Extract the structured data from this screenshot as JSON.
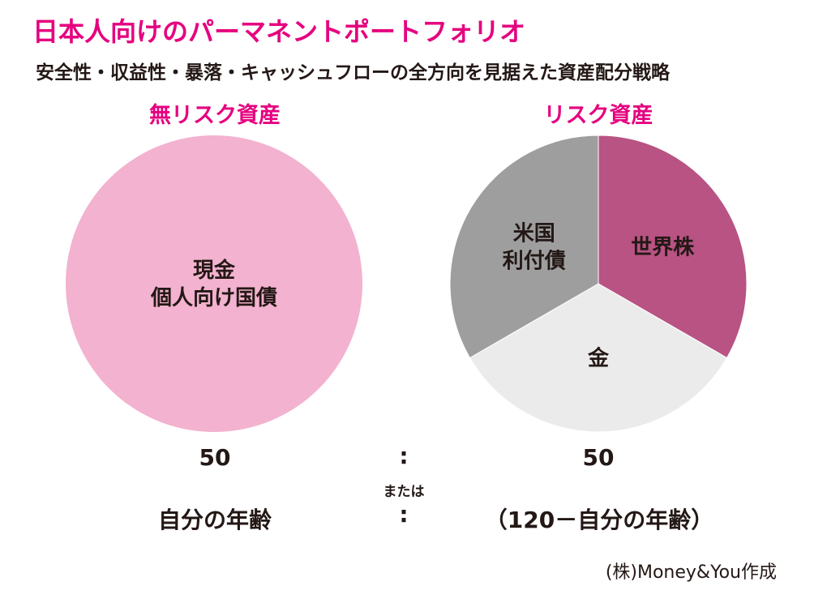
{
  "title": "日本人向けのパーマネントポートフォリオ",
  "subtitle": "安全性・収益性・暴落・キャッシュフローの全方向を見据えた資産配分戦略",
  "colors": {
    "accent": "#e5007f",
    "risk_free_fill": "#f3b2cf",
    "world_stock": "#b85383",
    "us_bond": "#9e9e9f",
    "gold": "#ebebeb",
    "text": "#231815"
  },
  "chart_data": [
    {
      "type": "pie",
      "title": "無リスク資産",
      "slices": [
        {
          "label": "現金\n個人向け国債",
          "value": 100
        }
      ]
    },
    {
      "type": "pie",
      "title": "リスク資産",
      "slices": [
        {
          "label": "世界株",
          "value": 33.3
        },
        {
          "label": "金",
          "value": 33.3
        },
        {
          "label": "米国\n利付債",
          "value": 33.3
        }
      ]
    }
  ],
  "ratio": {
    "left_value": "50",
    "right_value": "50",
    "colon": ":",
    "or_label": "または",
    "left_formula": "自分の年齢",
    "right_formula": "（120－自分の年齢）"
  },
  "credit": "(株)Money&You作成"
}
